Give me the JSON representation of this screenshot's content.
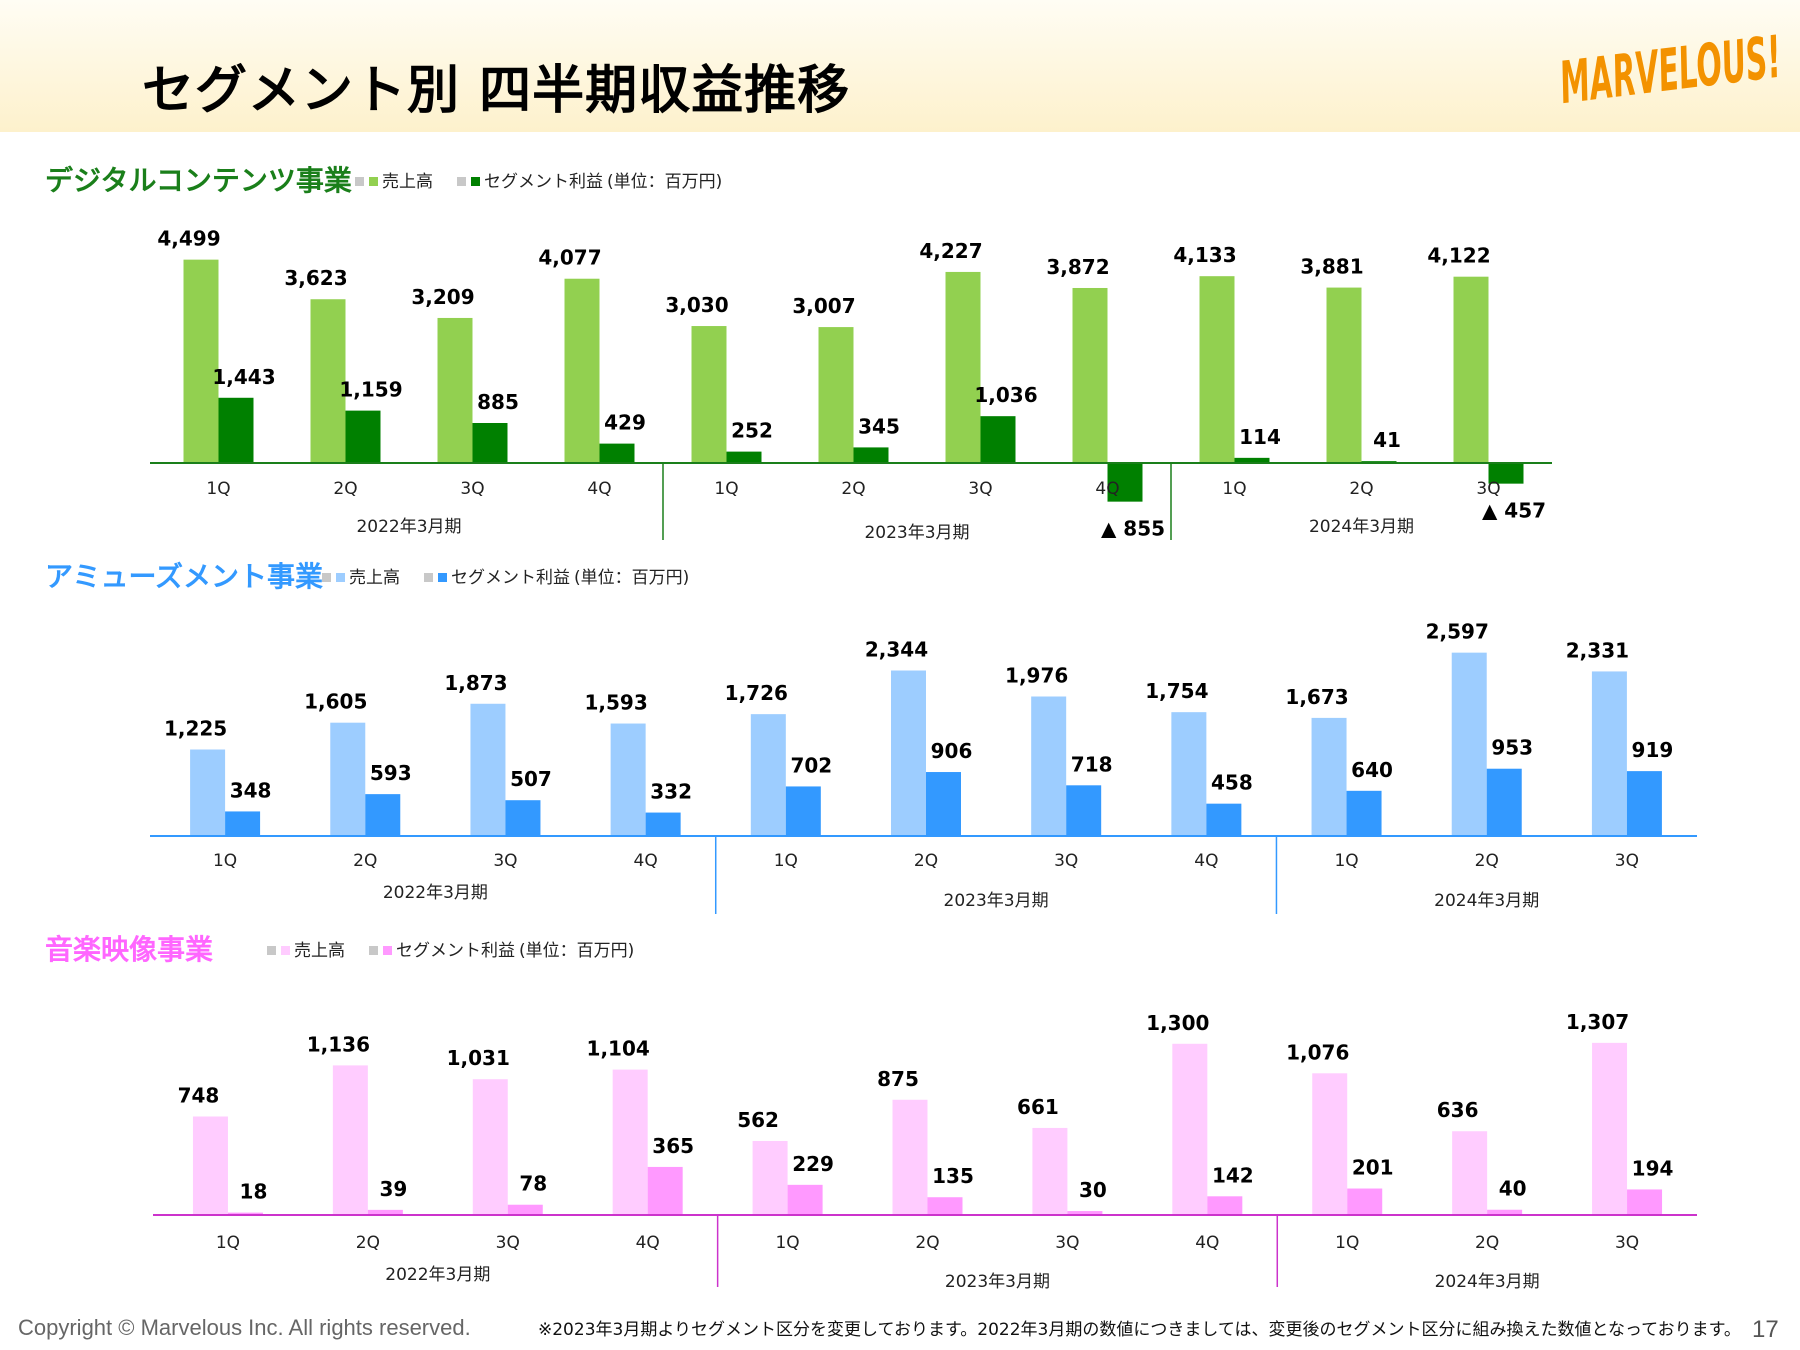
{
  "header": {
    "title": "セグメント別 四半期収益推移",
    "logo_text": "MARVELOUS!",
    "logo_color": "#f39200"
  },
  "footer": {
    "copyright": "Copyright © Marvelous Inc. All rights reserved.",
    "note": "※2023年3月期よりセグメント区分を変更しております。2022年3月期の数値につきましては、変更後のセグメント区分に組み換えた数値となっております。",
    "page_number": "17"
  },
  "chart_data": [
    {
      "type": "bar",
      "title": "デジタルコンテンツ事業",
      "title_color": "#1a7f1a",
      "unit_note": "(単位：百万円)",
      "categories": [
        "1Q",
        "2Q",
        "3Q",
        "4Q",
        "1Q",
        "2Q",
        "3Q",
        "4Q",
        "1Q",
        "2Q",
        "3Q"
      ],
      "periods": [
        {
          "label": "2022年3月期",
          "count": 4
        },
        {
          "label": "2023年3月期",
          "count": 4
        },
        {
          "label": "2024年3月期",
          "count": 3
        }
      ],
      "series": [
        {
          "name": "売上高",
          "color": "#92d050",
          "values": [
            4499,
            3623,
            3209,
            4077,
            3030,
            3007,
            4227,
            3872,
            4133,
            3881,
            4122
          ]
        },
        {
          "name": "セグメント利益",
          "color": "#008000",
          "values": [
            1443,
            1159,
            885,
            429,
            252,
            345,
            1036,
            -855,
            114,
            41,
            -457
          ]
        }
      ],
      "value_labels": [
        [
          "4,499",
          "3,623",
          "3,209",
          "4,077",
          "3,030",
          "3,007",
          "4,227",
          "3,872",
          "4,133",
          "3,881",
          "4,122"
        ],
        [
          "1,443",
          "1,159",
          "885",
          "429",
          "252",
          "345",
          "1,036",
          "▲ 855",
          "114",
          "41",
          "▲ 457"
        ]
      ],
      "axis_color": "#1a7f1a"
    },
    {
      "type": "bar",
      "title": "アミューズメント事業",
      "title_color": "#3399ff",
      "unit_note": "(単位：百万円)",
      "categories": [
        "1Q",
        "2Q",
        "3Q",
        "4Q",
        "1Q",
        "2Q",
        "3Q",
        "4Q",
        "1Q",
        "2Q",
        "3Q"
      ],
      "periods": [
        {
          "label": "2022年3月期",
          "count": 4
        },
        {
          "label": "2023年3月期",
          "count": 4
        },
        {
          "label": "2024年3月期",
          "count": 3
        }
      ],
      "series": [
        {
          "name": "売上高",
          "color": "#9dcdff",
          "values": [
            1225,
            1605,
            1873,
            1593,
            1726,
            2344,
            1976,
            1754,
            1673,
            2597,
            2331
          ]
        },
        {
          "name": "セグメント利益",
          "color": "#3399ff",
          "values": [
            348,
            593,
            507,
            332,
            702,
            906,
            718,
            458,
            640,
            953,
            919
          ]
        }
      ],
      "value_labels": [
        [
          "1,225",
          "1,605",
          "1,873",
          "1,593",
          "1,726",
          "2,344",
          "1,976",
          "1,754",
          "1,673",
          "2,597",
          "2,331"
        ],
        [
          "348",
          "593",
          "507",
          "332",
          "702",
          "906",
          "718",
          "458",
          "640",
          "953",
          "919"
        ]
      ],
      "axis_color": "#3399ff"
    },
    {
      "type": "bar",
      "title": "音楽映像事業",
      "title_color": "#ff66ff",
      "unit_note": "(単位：百万円)",
      "categories": [
        "1Q",
        "2Q",
        "3Q",
        "4Q",
        "1Q",
        "2Q",
        "3Q",
        "4Q",
        "1Q",
        "2Q",
        "3Q"
      ],
      "periods": [
        {
          "label": "2022年3月期",
          "count": 4
        },
        {
          "label": "2023年3月期",
          "count": 4
        },
        {
          "label": "2024年3月期",
          "count": 3
        }
      ],
      "series": [
        {
          "name": "売上高",
          "color": "#ffccff",
          "values": [
            748,
            1136,
            1031,
            1104,
            562,
            875,
            661,
            1300,
            1076,
            636,
            1307
          ]
        },
        {
          "name": "セグメント利益",
          "color": "#ff99ff",
          "values": [
            18,
            39,
            78,
            365,
            229,
            135,
            30,
            142,
            201,
            40,
            194
          ]
        }
      ],
      "value_labels": [
        [
          "748",
          "1,136",
          "1,031",
          "1,104",
          "562",
          "875",
          "661",
          "1,300",
          "1,076",
          "636",
          "1,307"
        ],
        [
          "18",
          "39",
          "78",
          "365",
          "229",
          "135",
          "30",
          "142",
          "201",
          "40",
          "194"
        ]
      ],
      "axis_color": "#cc33cc"
    }
  ]
}
